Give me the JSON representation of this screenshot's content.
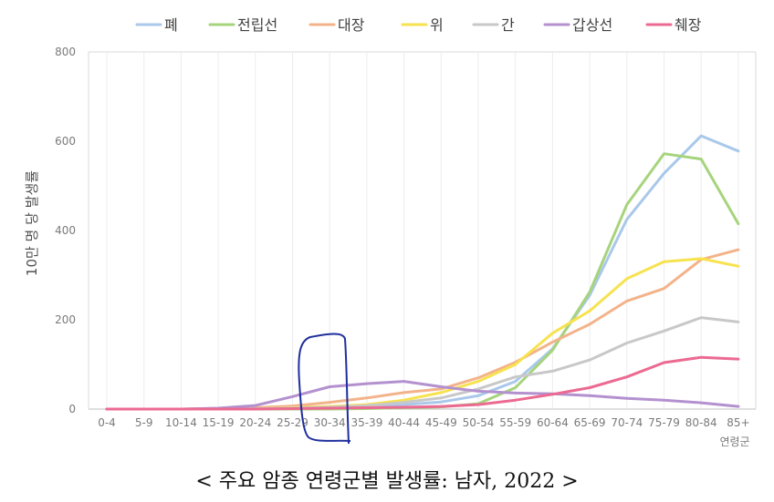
{
  "chart_data": {
    "type": "line",
    "title": "",
    "xlabel": "연령군",
    "ylabel": "10만 명 당 발생률",
    "ylim": [
      0,
      800
    ],
    "yticks": [
      0,
      200,
      400,
      600,
      800
    ],
    "grid": "vertical",
    "legend_position": "top",
    "categories": [
      "0-4",
      "5-9",
      "10-14",
      "15-19",
      "20-24",
      "25-29",
      "30-34",
      "35-39",
      "40-44",
      "45-49",
      "50-54",
      "55-59",
      "60-64",
      "65-69",
      "70-74",
      "75-79",
      "80-84",
      "85+"
    ],
    "series": [
      {
        "name": "폐",
        "color": "#a9c8ea",
        "values": [
          0,
          0,
          0,
          1,
          2,
          2,
          3,
          5,
          10,
          16,
          30,
          62,
          135,
          255,
          425,
          528,
          612,
          578
        ]
      },
      {
        "name": "전립선",
        "color": "#a6d47c",
        "values": [
          0,
          0,
          0,
          0,
          0,
          0,
          0,
          1,
          3,
          5,
          12,
          48,
          132,
          262,
          458,
          572,
          560,
          415
        ]
      },
      {
        "name": "대장",
        "color": "#f3b38a",
        "values": [
          0,
          0,
          0,
          1,
          3,
          7,
          15,
          25,
          37,
          45,
          70,
          105,
          150,
          190,
          242,
          270,
          335,
          357
        ]
      },
      {
        "name": "위",
        "color": "#f7e24f",
        "values": [
          0,
          0,
          0,
          0,
          1,
          3,
          6,
          10,
          20,
          37,
          62,
          100,
          170,
          220,
          292,
          330,
          337,
          320
        ]
      },
      {
        "name": "간",
        "color": "#c8c8c8",
        "values": [
          0,
          0,
          0,
          0,
          1,
          2,
          4,
          8,
          15,
          25,
          45,
          72,
          85,
          110,
          148,
          175,
          205,
          195
        ]
      },
      {
        "name": "갑상선",
        "color": "#b391cf",
        "values": [
          0,
          0,
          0,
          2,
          8,
          28,
          50,
          57,
          62,
          50,
          40,
          36,
          34,
          30,
          24,
          20,
          14,
          6
        ]
      },
      {
        "name": "췌장",
        "color": "#ec6a91",
        "values": [
          0,
          0,
          0,
          0,
          0,
          1,
          2,
          3,
          4,
          6,
          10,
          20,
          33,
          48,
          72,
          104,
          116,
          112
        ]
      }
    ],
    "annotation": "hand-drawn blue loop around 30-34"
  },
  "caption": "< 주요 암종 연령군별 발생률: 남자, 2022 >"
}
